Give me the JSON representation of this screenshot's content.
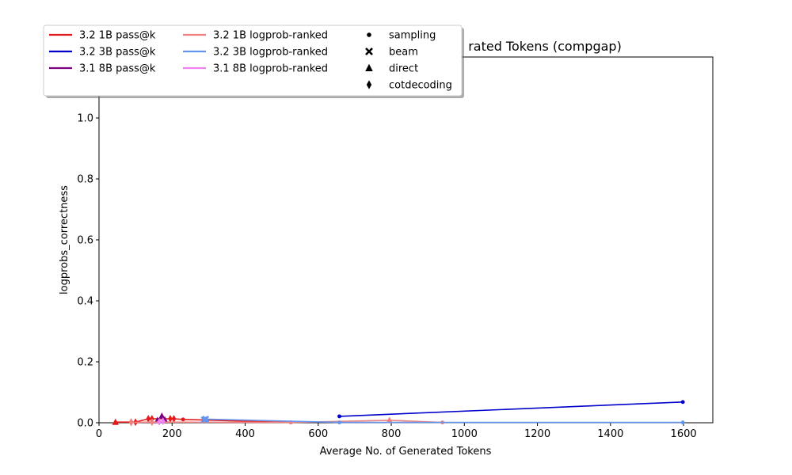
{
  "chart_data": {
    "type": "line",
    "title": "rated Tokens (compgap)",
    "xlabel": "Average No. of Generated Tokens",
    "ylabel": "logprobs_correctness",
    "xlim": [
      0,
      1680
    ],
    "ylim": [
      0,
      1.2
    ],
    "xticks": [
      0,
      200,
      400,
      600,
      800,
      1000,
      1200,
      1400,
      1600
    ],
    "yticks": [
      0.0,
      0.2,
      0.4,
      0.6,
      0.8,
      1.0
    ],
    "xtick_labels": [
      "0",
      "200",
      "400",
      "600",
      "800",
      "1000",
      "1200",
      "1400",
      "1600"
    ],
    "ytick_labels": [
      "0.0",
      "0.2",
      "0.4",
      "0.6",
      "0.8",
      "1.0"
    ],
    "grid": false,
    "legend_position": "top-left",
    "series": [
      {
        "name": "3.2 1B pass@k",
        "color": "#e41a1a",
        "points": [
          {
            "x": 45,
            "y": 0.002,
            "marker": "triangle"
          },
          {
            "x": 88,
            "y": 0.002,
            "marker": "diamond"
          },
          {
            "x": 100,
            "y": 0.002,
            "marker": "diamond"
          },
          {
            "x": 135,
            "y": 0.013,
            "marker": "diamond"
          },
          {
            "x": 145,
            "y": 0.013,
            "marker": "diamond"
          },
          {
            "x": 195,
            "y": 0.013,
            "marker": "diamond"
          },
          {
            "x": 205,
            "y": 0.013,
            "marker": "diamond"
          },
          {
            "x": 230,
            "y": 0.011,
            "marker": "dot"
          },
          {
            "x": 525,
            "y": 0.001,
            "marker": "dot"
          }
        ]
      },
      {
        "name": "3.2 3B pass@k",
        "color": "#0000cc",
        "points": [
          {
            "x": 658,
            "y": 0.021,
            "marker": "dot"
          },
          {
            "x": 1598,
            "y": 0.068,
            "marker": "dot"
          }
        ]
      },
      {
        "name": "3.1 8B pass@k",
        "color": "#7a0080",
        "points": [
          {
            "x": 160,
            "y": 0.008,
            "marker": "triangle"
          },
          {
            "x": 172,
            "y": 0.022,
            "marker": "triangle"
          },
          {
            "x": 180,
            "y": 0.01,
            "marker": "triangle"
          }
        ]
      },
      {
        "name": "3.2 1B logprob-ranked",
        "color": "#f08080",
        "points": [
          {
            "x": 88,
            "y": 0.001,
            "marker": "diamond"
          },
          {
            "x": 145,
            "y": 0.002,
            "marker": "diamond"
          },
          {
            "x": 525,
            "y": 0.001,
            "marker": "dot"
          },
          {
            "x": 795,
            "y": 0.008,
            "marker": "triangle"
          },
          {
            "x": 940,
            "y": 0.001,
            "marker": "dot"
          }
        ]
      },
      {
        "name": "3.2 3B logprob-ranked",
        "color": "#6495ed",
        "points": [
          {
            "x": 288,
            "y": 0.01,
            "marker": "x"
          },
          {
            "x": 292,
            "y": 0.012,
            "marker": "x"
          },
          {
            "x": 658,
            "y": 0.001,
            "marker": "dot"
          },
          {
            "x": 1598,
            "y": 0.001,
            "marker": "dot"
          }
        ]
      },
      {
        "name": "3.1 8B logprob-ranked",
        "color": "#ee82ee",
        "points": [
          {
            "x": 165,
            "y": 0.003,
            "marker": "diamond"
          },
          {
            "x": 175,
            "y": 0.005,
            "marker": "diamond"
          }
        ]
      }
    ],
    "marker_legend": [
      {
        "name": "sampling",
        "marker": "dot"
      },
      {
        "name": "beam",
        "marker": "x"
      },
      {
        "name": "direct",
        "marker": "triangle"
      },
      {
        "name": "cotdecoding",
        "marker": "diamond"
      }
    ]
  }
}
